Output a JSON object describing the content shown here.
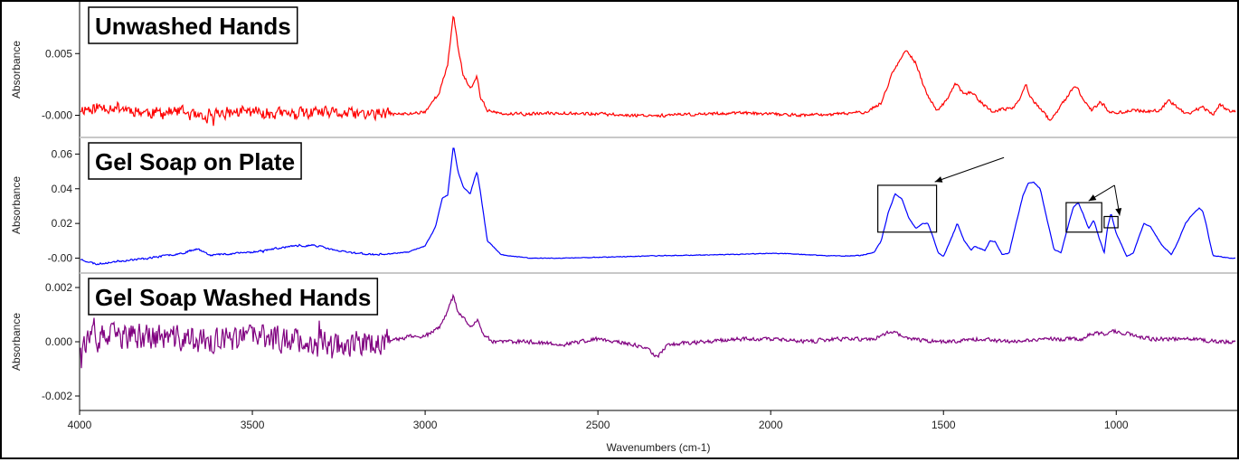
{
  "chart_data": [
    {
      "type": "line",
      "title": "Unwashed Hands",
      "ylabel": "Absorbance",
      "yticks": [
        "0.005",
        "-0.000"
      ],
      "ytick_values": [
        0.005,
        0.0
      ],
      "ylim": [
        -0.0015,
        0.0089
      ],
      "color": "#ff0000",
      "noise": {
        "low_region": 0.00045,
        "high_region": 0.00012
      },
      "series": [
        {
          "x": [
            4000,
            3900,
            3800,
            3700,
            3640,
            3600,
            3500,
            3400,
            3300,
            3200,
            3100,
            3050,
            3000,
            2960,
            2935,
            2918,
            2905,
            2890,
            2870,
            2855,
            2850,
            2840,
            2820,
            2780,
            2700,
            2600,
            2500,
            2400,
            2300,
            2200,
            2100,
            2000,
            1900,
            1800,
            1720,
            1680,
            1650,
            1620,
            1605,
            1580,
            1550,
            1520,
            1490,
            1465,
            1440,
            1420,
            1400,
            1360,
            1300,
            1280,
            1262,
            1245,
            1220,
            1190,
            1150,
            1118,
            1090,
            1070,
            1045,
            1020,
            1000,
            950,
            900,
            870,
            850,
            800,
            780,
            750,
            720,
            700,
            670
          ],
          "y": [
            0.0005,
            0.0007,
            0.0002,
            0.0003,
            -0.0004,
            0.0002,
            0.0003,
            0.0001,
            0.0002,
            0.0001,
            0.0001,
            0.0001,
            0.0003,
            0.0018,
            0.004,
            0.0083,
            0.0055,
            0.0033,
            0.0022,
            0.0028,
            0.0032,
            0.0015,
            0.0004,
            0.0001,
            0.0001,
            0.0002,
            0.0001,
            0.0,
            0.0,
            0.0001,
            0.0002,
            0.0001,
            0.0,
            0.0001,
            0.0003,
            0.001,
            0.0033,
            0.0048,
            0.0053,
            0.0042,
            0.0018,
            0.0004,
            0.0012,
            0.0026,
            0.0017,
            0.0019,
            0.0013,
            0.0003,
            0.0006,
            0.0012,
            0.0025,
            0.0013,
            0.0006,
            -0.0005,
            0.0012,
            0.0024,
            0.0011,
            0.0004,
            0.0011,
            0.0003,
            0.0002,
            0.0004,
            0.0003,
            0.0004,
            0.0013,
            0.0001,
            0.0003,
            0.0007,
            0.0,
            0.0009,
            0.0003
          ]
        }
      ]
    },
    {
      "type": "line",
      "title": "Gel Soap on Plate",
      "ylabel": "Absorbance",
      "yticks": [
        "0.06",
        "0.04",
        "0.02",
        "-0.00"
      ],
      "ytick_values": [
        0.06,
        0.04,
        0.02,
        0.0
      ],
      "ylim": [
        -0.0065,
        0.0675
      ],
      "color": "#0000ff",
      "noise": {
        "low_region": 0.0005,
        "high_region": 0.0002
      },
      "series": [
        {
          "x": [
            4000,
            3950,
            3900,
            3800,
            3700,
            3660,
            3620,
            3500,
            3400,
            3320,
            3250,
            3150,
            3100,
            3050,
            3000,
            2970,
            2950,
            2935,
            2918,
            2905,
            2890,
            2870,
            2855,
            2850,
            2840,
            2820,
            2780,
            2700,
            2600,
            2500,
            2400,
            2300,
            2200,
            2100,
            2000,
            1950,
            1900,
            1800,
            1740,
            1720,
            1700,
            1680,
            1660,
            1640,
            1620,
            1600,
            1580,
            1560,
            1545,
            1530,
            1515,
            1500,
            1480,
            1460,
            1440,
            1420,
            1410,
            1400,
            1380,
            1365,
            1350,
            1330,
            1310,
            1290,
            1270,
            1255,
            1240,
            1220,
            1200,
            1180,
            1160,
            1140,
            1125,
            1110,
            1095,
            1080,
            1065,
            1050,
            1035,
            1025,
            1015,
            1000,
            985,
            970,
            950,
            935,
            920,
            900,
            870,
            840,
            820,
            800,
            780,
            760,
            750,
            740,
            730,
            720,
            700,
            670
          ],
          "y": [
            -0.0005,
            -0.0035,
            -0.002,
            0.0,
            0.003,
            0.0055,
            0.0018,
            0.0035,
            0.0065,
            0.0075,
            0.004,
            0.002,
            0.0025,
            0.0035,
            0.007,
            0.018,
            0.035,
            0.036,
            0.065,
            0.05,
            0.041,
            0.037,
            0.047,
            0.05,
            0.038,
            0.01,
            0.002,
            0.0,
            0.0,
            0.0005,
            0.001,
            0.0015,
            0.0018,
            0.0022,
            0.0028,
            0.0025,
            0.002,
            0.0012,
            0.0015,
            0.0025,
            0.0035,
            0.01,
            0.026,
            0.037,
            0.034,
            0.023,
            0.017,
            0.02,
            0.02,
            0.012,
            0.003,
            0.001,
            0.01,
            0.02,
            0.01,
            0.0045,
            0.007,
            0.006,
            0.0045,
            0.01,
            0.0095,
            0.002,
            0.003,
            0.02,
            0.036,
            0.043,
            0.044,
            0.04,
            0.022,
            0.005,
            0.003,
            0.018,
            0.029,
            0.032,
            0.025,
            0.017,
            0.022,
            0.012,
            0.003,
            0.018,
            0.026,
            0.014,
            0.008,
            0.001,
            0.003,
            0.012,
            0.02,
            0.018,
            0.008,
            0.002,
            0.01,
            0.02,
            0.025,
            0.029,
            0.027,
            0.02,
            0.01,
            0.0015,
            0.001,
            0.0
          ]
        }
      ],
      "annotations": {
        "boxes": [
          {
            "x0": 1690,
            "x1": 1520,
            "y0": 0.015,
            "y1": 0.042
          },
          {
            "x0": 1145,
            "x1": 1042,
            "y0": 0.015,
            "y1": 0.032
          },
          {
            "x0": 1035,
            "x1": 995,
            "y0": 0.0175,
            "y1": 0.024
          }
        ],
        "arrows": [
          {
            "from": [
              1325,
              0.058
            ],
            "to": [
              1525,
              0.044
            ]
          },
          {
            "from": [
              1005,
              0.042
            ],
            "to": [
              1080,
              0.033
            ]
          },
          {
            "from": [
              1005,
              0.042
            ],
            "to": [
              990,
              0.0245
            ]
          }
        ]
      }
    },
    {
      "type": "line",
      "title": "Gel Soap Washed Hands",
      "ylabel": "Absorbance",
      "yticks": [
        "0.002",
        "0.000",
        "-0.002"
      ],
      "ytick_values": [
        0.002,
        0.0,
        -0.002
      ],
      "ylim": [
        -0.0024,
        0.0024
      ],
      "color": "#800080",
      "noise": {
        "low_region": 0.00045,
        "high_region": 7e-05
      },
      "series": [
        {
          "x": [
            4000,
            3900,
            3800,
            3700,
            3600,
            3500,
            3400,
            3300,
            3200,
            3100,
            3050,
            3000,
            2960,
            2935,
            2918,
            2905,
            2890,
            2870,
            2855,
            2845,
            2830,
            2800,
            2700,
            2600,
            2500,
            2400,
            2350,
            2330,
            2300,
            2200,
            2100,
            2000,
            1900,
            1800,
            1700,
            1650,
            1600,
            1500,
            1400,
            1300,
            1200,
            1100,
            1070,
            1030,
            1010,
            900,
            800,
            700,
            670
          ],
          "y": [
            0.0,
            0.0002,
            0.0002,
            0.0001,
            0.0,
            0.0002,
            0.0001,
            0.0,
            -0.0001,
            0.0,
            0.0002,
            0.0002,
            0.0005,
            0.0011,
            0.0017,
            0.0011,
            0.0009,
            0.0006,
            0.0007,
            0.0008,
            0.0002,
            0.0,
            0.0,
            -0.0001,
            0.0001,
            -0.0001,
            -0.0003,
            -0.0006,
            -0.0001,
            0.0,
            0.0001,
            0.0001,
            0.0,
            0.0001,
            0.0001,
            0.0004,
            0.0001,
            0.0,
            0.0001,
            0.0,
            0.0001,
            0.0001,
            0.0003,
            0.0003,
            0.0004,
            0.0001,
            0.0001,
            0.0,
            0.0
          ]
        }
      ]
    }
  ],
  "x_axis": {
    "label": "Wavenumbers (cm-1)",
    "xlim": [
      4000,
      650
    ],
    "ticks": [
      "4000",
      "3500",
      "3000",
      "2500",
      "2000",
      "1500",
      "1000"
    ],
    "tick_values": [
      4000,
      3500,
      3000,
      2500,
      2000,
      1500,
      1000
    ]
  }
}
